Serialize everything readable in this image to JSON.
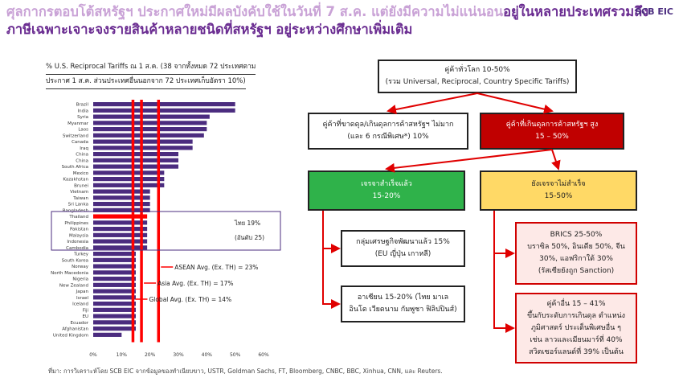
{
  "title": {
    "line1_part1": "ศุลกากรตอบโต้สหรัฐฯ ประกาศใหม่มีผลบังคับใช้ในวันที่ 7 ส.ค. แต่ยังมีความไม่แน่นอน",
    "line1_part2": "อยู่ในหลายประเทศรวมถึง",
    "line2": "ภาษีเฉพาะเจาะจงรายสินค้าหลายชนิดที่สหรัฐฯ อยู่ระหว่างศึกษาเพิ่มเติม"
  },
  "logo": "SCB EIC",
  "chart_note": {
    "line1": "% U.S. Reciprocal Tariffs ณ 1 ส.ค. (38 จากทั้งหมด 72 ประเทศตาม",
    "line2": "ประกาศ 1 ส.ค. ส่วนประเทศอื่นนอกจาก 72 ประเทศเก็บอัตรา 10%)"
  },
  "chart_data": {
    "type": "bar",
    "orientation": "horizontal",
    "categories": [
      "Brazil",
      "India",
      "Syria",
      "Myanmar",
      "Laos",
      "Switzerland",
      "Canada",
      "Iraq",
      "China",
      "China",
      "South Africa",
      "Mexico",
      "Kazakhstan",
      "Brunei",
      "Vietnam",
      "Taiwan",
      "Sri Lanka",
      "Bangladesh",
      "Thailand",
      "Philippines",
      "Pakistan",
      "Malaysia",
      "Indonesia",
      "Cambodia",
      "Turkey",
      "South Korea",
      "Norway",
      "North Macedonia",
      "Nigeria",
      "New Zealand",
      "Japan",
      "Israel",
      "Iceland",
      "Fiji",
      "EU",
      "Ecuador",
      "Afghanistan",
      "United Kingdom"
    ],
    "values": [
      50,
      50,
      41,
      40,
      40,
      39,
      35,
      35,
      30,
      30,
      30,
      25,
      25,
      25,
      20,
      20,
      20,
      20,
      19,
      19,
      19,
      19,
      19,
      19,
      15,
      15,
      15,
      15,
      15,
      15,
      15,
      15,
      15,
      15,
      15,
      15,
      15,
      10
    ],
    "highlight": "Thailand",
    "xticks": [
      "0%",
      "10%",
      "20%",
      "30%",
      "40%",
      "50%",
      "60%"
    ],
    "xlim": [
      0,
      60
    ],
    "bar_color": "#4b2c7f",
    "highlight_color": "#ff0000",
    "reference_lines": [
      {
        "label": "ASEAN Avg. (Ex. TH) = 23%",
        "value": 23
      },
      {
        "label": "Asia Avg. (Ex. TH) = 17%",
        "value": 17
      },
      {
        "label": "Global Avg. (Ex. TH) = 14%",
        "value": 14
      }
    ],
    "thai_label_1": "ไทย 19%",
    "thai_label_2": "(อันดับ 25)"
  },
  "diagram": {
    "top": {
      "line1": "คู่ค้าทั่วโลก 10-50%",
      "line2": "(รวม Universal, Reciprocal, Country Specific Tariffs)"
    },
    "deficit": {
      "line1": "คู่ค้าที่ขาดดุล/เกินดุลการค้าสหรัฐฯ ไม่มาก",
      "line2": "(และ 6 กรณีพิเศษ*) 10%"
    },
    "surplus": {
      "line1": "คู่ค้าที่เกินดุลการค้าสหรัฐฯ สูง",
      "line2": "15 – 50%"
    },
    "success": {
      "line1": "เจรจาสำเร็จแล้ว",
      "line2": "15-20%"
    },
    "not_success": {
      "line1": "ยังเจรจาไม่สำเร็จ",
      "line2": "15-50%"
    },
    "developed": {
      "line1": "กลุ่มเศรษฐกิจพัฒนาแล้ว 15%",
      "line2": "(EU ญี่ปุ่น เกาหลี)"
    },
    "asean": {
      "line1": "อาเซียน 15-20% (ไทย มาเล",
      "line2": "อินโด เวียดนาม กัมพูชา ฟิลิปปินส์)"
    },
    "brics": {
      "line1": "BRICS 25-50%",
      "line2": "บราซิล 50%, อินเดีย 50%, จีน",
      "line3": "30%, แอฟริกาใต้ 30%",
      "line4": "(รัสเซียยังถูก Sanction)"
    },
    "others": {
      "line1": "คู่ค้าอื่น 15 – 41%",
      "line2": "ขึ้นกับระดับการเกินดุล ตำแหน่ง",
      "line3": "ภูมิศาสตร์ ประเด็นพิเศษอื่น ๆ",
      "line4": "เช่น ลาวและเมียนมาร์ที่ 40%",
      "line5": "สวิตเซอร์แลนด์ที่ 39% เป็นต้น"
    }
  },
  "source": "ที่มา: การวิเคราะห์โดย SCB EIC จากข้อมูลของทำเนียบขาว, USTR, Goldman Sachs, FT, Bloomberg, CNBC, BBC, Xinhua, CNN, และ Reuters."
}
